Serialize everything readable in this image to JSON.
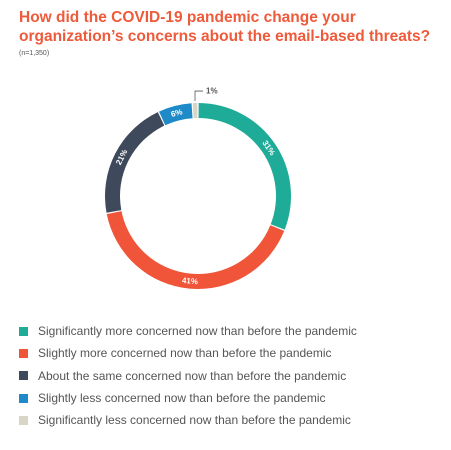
{
  "chart_data": {
    "type": "pie",
    "title": "How did the COVID-19 pandemic change your organization’s concerns about the email-based threats?",
    "note": "(n=1,350)",
    "slices": [
      {
        "label": "Significantly more concerned now than before the pandemic",
        "value": 31,
        "display": "31%",
        "color": "#1eab98"
      },
      {
        "label": "Slightly more concerned now than before the pandemic",
        "value": 41,
        "display": "41%",
        "color": "#f0553a"
      },
      {
        "label": "About the same concerned now than before the pandemic",
        "value": 21,
        "display": "21%",
        "color": "#3e4a5b"
      },
      {
        "label": "Slightly less concerned now than before the pandemic",
        "value": 6,
        "display": "6%",
        "color": "#1e8ac8"
      },
      {
        "label": "Significantly less concerned now than before the pandemic",
        "value": 1,
        "display": "1%",
        "color": "#d9d6c8"
      }
    ],
    "legend_position": "bottom"
  }
}
